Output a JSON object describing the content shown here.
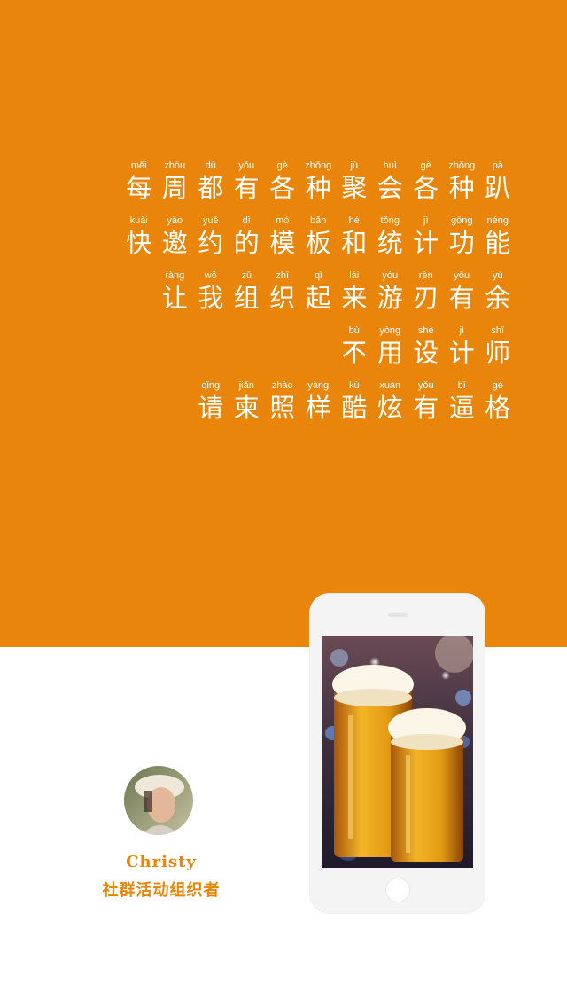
{
  "colors": {
    "accent": "#e8850a",
    "background": "#ffffff",
    "text_on_accent": "#ffffff"
  },
  "poem": {
    "lines": [
      {
        "chars": [
          {
            "py": "měi",
            "hz": "每"
          },
          {
            "py": "zhōu",
            "hz": "周"
          },
          {
            "py": "dū",
            "hz": "都"
          },
          {
            "py": "yǒu",
            "hz": "有"
          },
          {
            "py": "gè",
            "hz": "各"
          },
          {
            "py": "zhǒng",
            "hz": "种"
          },
          {
            "py": "jù",
            "hz": "聚"
          },
          {
            "py": "huì",
            "hz": "会"
          },
          {
            "py": "gè",
            "hz": "各"
          },
          {
            "py": "zhǒng",
            "hz": "种"
          },
          {
            "py": "pā",
            "hz": "趴"
          }
        ]
      },
      {
        "chars": [
          {
            "py": "kuài",
            "hz": "快"
          },
          {
            "py": "yāo",
            "hz": "邀"
          },
          {
            "py": "yuē",
            "hz": "约"
          },
          {
            "py": "dì",
            "hz": "的"
          },
          {
            "py": "mó",
            "hz": "模"
          },
          {
            "py": "bǎn",
            "hz": "板"
          },
          {
            "py": "hé",
            "hz": "和"
          },
          {
            "py": "tǒng",
            "hz": "统"
          },
          {
            "py": "jì",
            "hz": "计"
          },
          {
            "py": "gōng",
            "hz": "功"
          },
          {
            "py": "néng",
            "hz": "能"
          }
        ]
      },
      {
        "chars": [
          {
            "py": "ràng",
            "hz": "让"
          },
          {
            "py": "wǒ",
            "hz": "我"
          },
          {
            "py": "zǔ",
            "hz": "组"
          },
          {
            "py": "zhī",
            "hz": "织"
          },
          {
            "py": "qǐ",
            "hz": "起"
          },
          {
            "py": "lái",
            "hz": "来"
          },
          {
            "py": "yóu",
            "hz": "游"
          },
          {
            "py": "rèn",
            "hz": "刃"
          },
          {
            "py": "yǒu",
            "hz": "有"
          },
          {
            "py": "yú",
            "hz": "余"
          }
        ]
      },
      {
        "chars": [
          {
            "py": "bù",
            "hz": "不"
          },
          {
            "py": "yòng",
            "hz": "用"
          },
          {
            "py": "shè",
            "hz": "设"
          },
          {
            "py": "jì",
            "hz": "计"
          },
          {
            "py": "shī",
            "hz": "师"
          }
        ]
      },
      {
        "chars": [
          {
            "py": "qǐng",
            "hz": "请"
          },
          {
            "py": "jiǎn",
            "hz": "柬"
          },
          {
            "py": "zhào",
            "hz": "照"
          },
          {
            "py": "yàng",
            "hz": "样"
          },
          {
            "py": "kù",
            "hz": "酷"
          },
          {
            "py": "xuàn",
            "hz": "炫"
          },
          {
            "py": "yǒu",
            "hz": "有"
          },
          {
            "py": "bī",
            "hz": "逼"
          },
          {
            "py": "gé",
            "hz": "格"
          }
        ]
      }
    ]
  },
  "organizer": {
    "name": "Christy",
    "role": "社群活动组织者"
  }
}
